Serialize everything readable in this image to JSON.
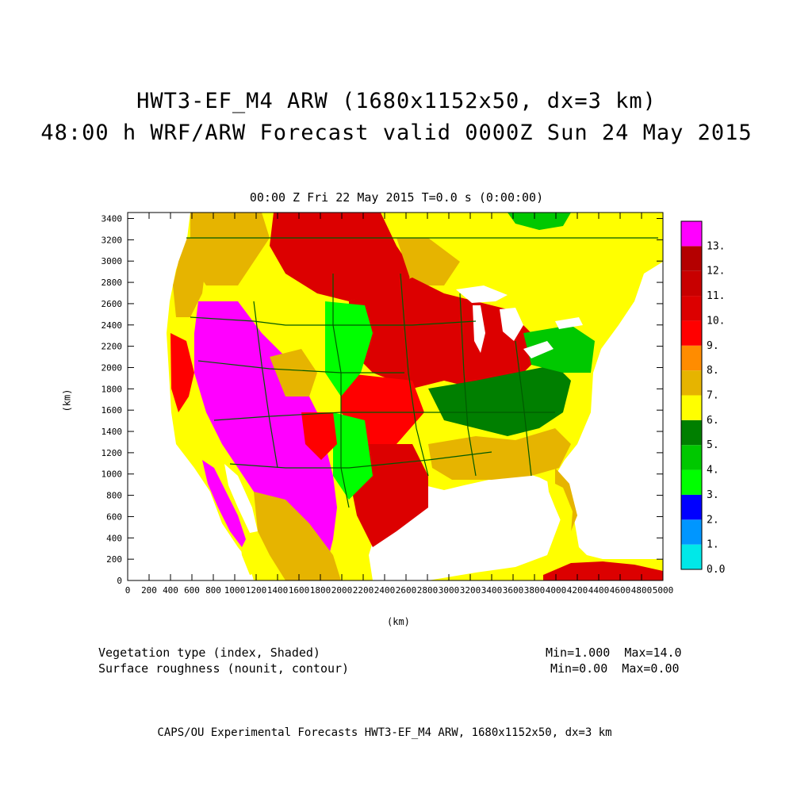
{
  "header": {
    "title_line1": "HWT3-EF_M4 ARW (1680x1152x50, dx=3 km)",
    "title_line2": "48:00 h WRF/ARW Forecast valid 0000Z Sun 24 May 2015",
    "subtitle": "00:00 Z Fri 22 May 2015    T=0.0 s (0:00:00)"
  },
  "map": {
    "x_axis_label": "(km)",
    "y_axis_label": "(km)",
    "x_ticks": [
      "0",
      "200",
      "400",
      "600",
      "800",
      "1000",
      "1200",
      "1400",
      "1600",
      "1800",
      "2000",
      "2200",
      "2400",
      "2600",
      "2800",
      "3000",
      "3200",
      "3400",
      "3600",
      "3800",
      "4000",
      "4200",
      "4400",
      "4600",
      "4800",
      "5000"
    ],
    "y_ticks": [
      "0",
      "200",
      "400",
      "600",
      "800",
      "1000",
      "1200",
      "1400",
      "1600",
      "1800",
      "2000",
      "2200",
      "2400",
      "2600",
      "2800",
      "3000",
      "3200",
      "3400"
    ],
    "x_range": [
      0,
      5000
    ],
    "y_range": [
      0,
      3456
    ]
  },
  "legend": {
    "labels": [
      "0.0",
      "1.",
      "2.",
      "3.",
      "4.",
      "5.",
      "6.",
      "7.",
      "8.",
      "9.",
      "10.",
      "11.",
      "12.",
      "13."
    ],
    "colors": [
      "#00e8e8",
      "#0096ff",
      "#0000ff",
      "#00ff00",
      "#00c800",
      "#007f00",
      "#ffff00",
      "#e6b400",
      "#ff8c00",
      "#ff0000",
      "#dc0000",
      "#c80000",
      "#b40000",
      "#ff00ff"
    ]
  },
  "fields": {
    "field1_name": "Vegetation type (index, Shaded)",
    "field1_range": "Min=1.000  Max=14.0",
    "field2_name": "Surface roughness (nounit, contour)",
    "field2_range": "Min=0.00  Max=0.00"
  },
  "footer": "CAPS/OU Experimental Forecasts  HWT3-EF_M4 ARW, 1680x1152x50, dx=3 km",
  "map_colors": {
    "ocean": "#ffffff",
    "great_lakes": "#ffffff",
    "western_desert": "#ff00ff",
    "plains_grass": "#00ff00",
    "forest_green": "#00c800",
    "east_forest": "#007f00",
    "cropland": "#ff0000",
    "cropland_dark": "#dc0000",
    "savanna": "#e6b400",
    "shrub": "#ffff00",
    "boundary": "#005a00"
  }
}
